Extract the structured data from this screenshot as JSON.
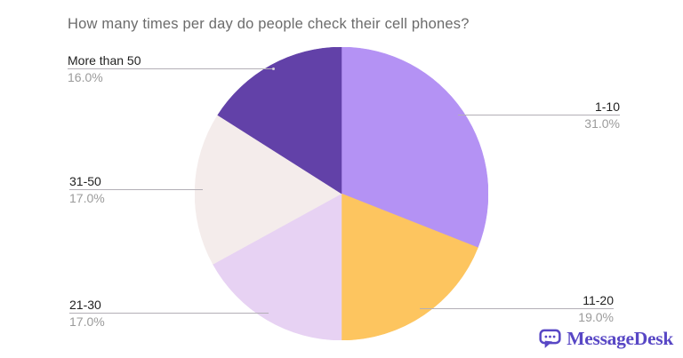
{
  "chart_data": {
    "type": "pie",
    "title": "How many times per day do people check their cell phones?",
    "slices": [
      {
        "label": "1-10",
        "value": 31,
        "pct_label": "31.0%",
        "color": "#b492f4"
      },
      {
        "label": "11-20",
        "value": 19,
        "pct_label": "19.0%",
        "color": "#fdc55f"
      },
      {
        "label": "21-30",
        "value": 17,
        "pct_label": "17.0%",
        "color": "#e7d2f3"
      },
      {
        "label": "31-50",
        "value": 17,
        "pct_label": "17.0%",
        "color": "#f4eceb"
      },
      {
        "label": "More than 50",
        "value": 16,
        "pct_label": "16.0%",
        "color": "#6241a8"
      }
    ],
    "start_angle_deg": 0,
    "direction": "clockwise",
    "legend": "callout-labels",
    "total": 100
  },
  "logo": {
    "text": "MessageDesk",
    "color": "#5847c5",
    "icon": "chat-bubble-dots-icon"
  }
}
